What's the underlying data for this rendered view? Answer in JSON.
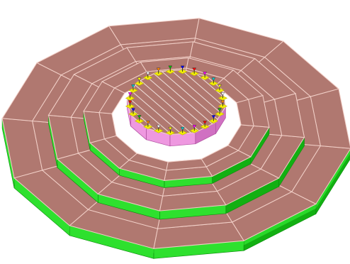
{
  "model": {
    "sides": 12,
    "tiers": [
      {
        "name": "tier-bottom",
        "sectors": 12
      },
      {
        "name": "tier-middle",
        "sectors": 12
      },
      {
        "name": "tier-top",
        "sectors": 12
      }
    ],
    "platform": {
      "name": "central-platform",
      "sectors": 12
    },
    "markers": {
      "count": 24,
      "tip_colors": [
        "#ff8800",
        "#00bb00",
        "#0000ee",
        "#ff0000",
        "#ff00ff",
        "#00cccc",
        "#ffff00",
        "#ffffff"
      ]
    }
  },
  "colors": {
    "tier_top_face": "#b07870",
    "tier_side_light": "#2ee02e",
    "tier_side_dark": "#12b012",
    "edge_line": "#f2d0c8",
    "platform_side": "#ee98e0",
    "platform_side_dark": "#d070c2",
    "platform_top": "#b07870",
    "hatch_line": "#f0e0dc",
    "marker_yellow": "#f4f000",
    "marker_dark": "#c0b800",
    "outline": "#5a3e38"
  }
}
